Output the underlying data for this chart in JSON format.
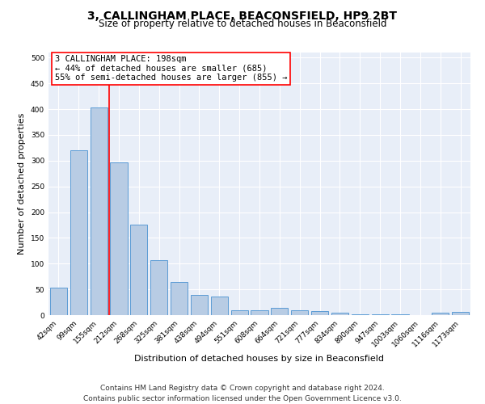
{
  "title": "3, CALLINGHAM PLACE, BEACONSFIELD, HP9 2BT",
  "subtitle": "Size of property relative to detached houses in Beaconsfield",
  "xlabel": "Distribution of detached houses by size in Beaconsfield",
  "ylabel": "Number of detached properties",
  "categories": [
    "42sqm",
    "99sqm",
    "155sqm",
    "212sqm",
    "268sqm",
    "325sqm",
    "381sqm",
    "438sqm",
    "494sqm",
    "551sqm",
    "608sqm",
    "664sqm",
    "721sqm",
    "777sqm",
    "834sqm",
    "890sqm",
    "947sqm",
    "1003sqm",
    "1060sqm",
    "1116sqm",
    "1173sqm"
  ],
  "values": [
    53,
    320,
    403,
    297,
    175,
    107,
    64,
    40,
    36,
    10,
    10,
    14,
    9,
    8,
    5,
    2,
    1,
    1,
    0,
    5,
    7
  ],
  "bar_color": "#b8cce4",
  "bar_edge_color": "#5b9bd5",
  "vline_x": 2.5,
  "vline_color": "red",
  "annotation_text": "3 CALLINGHAM PLACE: 198sqm\n← 44% of detached houses are smaller (685)\n55% of semi-detached houses are larger (855) →",
  "annotation_box_color": "white",
  "annotation_box_edge": "red",
  "ylim": [
    0,
    510
  ],
  "yticks": [
    0,
    50,
    100,
    150,
    200,
    250,
    300,
    350,
    400,
    450,
    500
  ],
  "background_color": "#e8eef8",
  "footer": "Contains HM Land Registry data © Crown copyright and database right 2024.\nContains public sector information licensed under the Open Government Licence v3.0.",
  "title_fontsize": 10,
  "subtitle_fontsize": 8.5,
  "xlabel_fontsize": 8,
  "ylabel_fontsize": 8,
  "tick_fontsize": 6.5,
  "annotation_fontsize": 7.5,
  "footer_fontsize": 6.5
}
